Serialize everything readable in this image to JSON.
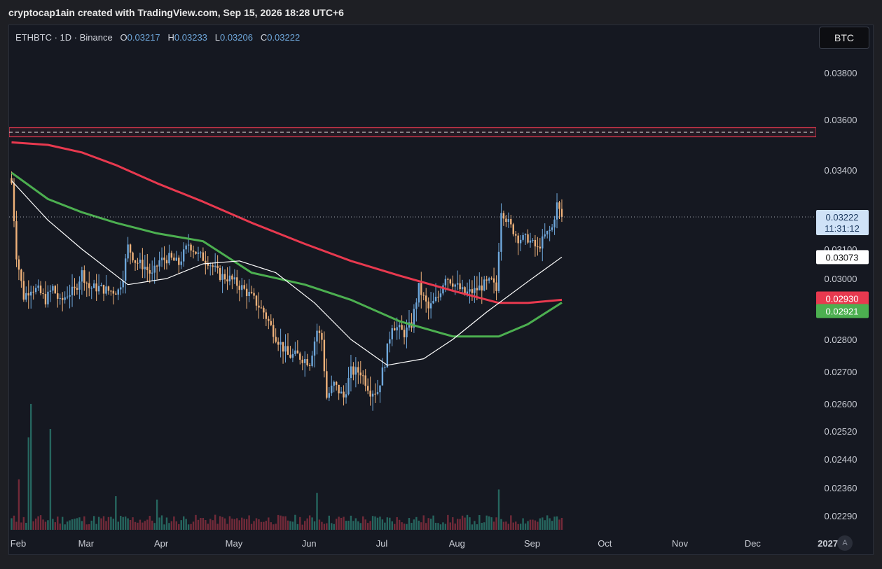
{
  "header": {
    "text": "cryptocap1ain created with TradingView.com, Sep 15, 2026 18:28 UTC+6"
  },
  "legend": {
    "symbol": "ETHBTC · 1D · Binance",
    "o_label": "O",
    "o_value": "0.03217",
    "h_label": "H",
    "h_value": "0.03233",
    "l_label": "L",
    "l_value": "0.03206",
    "c_label": "C",
    "c_value": "0.03222"
  },
  "currency_button": "BTC",
  "auto_button": "A",
  "colors": {
    "background": "#151821",
    "up_candle": "#6fa8dc",
    "down_candle": "#f0b27a",
    "ma_red": "#e8394f",
    "ma_green": "#4caf50",
    "ma_white": "#ffffff",
    "resistance_zone": "#e8394f"
  },
  "chart_data": {
    "type": "candlestick",
    "symbol": "ETHBTC",
    "interval": "1D",
    "exchange": "Binance",
    "ylim": [
      0.0226,
      0.0392
    ],
    "y_ticks": [
      "0.03800",
      "0.03600",
      "0.03400",
      "0.03100",
      "0.03000",
      "0.02800",
      "0.02700",
      "0.02600",
      "0.02520",
      "0.02440",
      "0.02360",
      "0.02290"
    ],
    "x_ticks": [
      "Feb",
      "Mar",
      "Apr",
      "May",
      "Jun",
      "Jul",
      "Aug",
      "Sep",
      "Oct",
      "Nov",
      "Dec",
      "2027"
    ],
    "price_labels": [
      {
        "value": "0.03222",
        "sub": "11:31:12",
        "role": "last-price"
      },
      {
        "value": "0.03073",
        "role": "ma-white"
      },
      {
        "value": "0.02930",
        "role": "ma-red"
      },
      {
        "value": "0.02921",
        "role": "ma-green"
      }
    ],
    "resistance_zone": [
      0.03532,
      0.03568
    ],
    "resistance_mid": 0.0355,
    "last_price": 0.03222,
    "price_path": [
      [
        "2026-01-31",
        0.0335
      ],
      [
        "2026-02-02",
        0.0308
      ],
      [
        "2026-02-05",
        0.0294
      ],
      [
        "2026-02-08",
        0.0297
      ],
      [
        "2026-02-11",
        0.0296
      ],
      [
        "2026-02-14",
        0.0293
      ],
      [
        "2026-02-17",
        0.0297
      ],
      [
        "2026-02-20",
        0.0292
      ],
      [
        "2026-02-23",
        0.0295
      ],
      [
        "2026-02-26",
        0.0296
      ],
      [
        "2026-03-01",
        0.0302
      ],
      [
        "2026-03-04",
        0.0297
      ],
      [
        "2026-03-08",
        0.0297
      ],
      [
        "2026-03-12",
        0.0296
      ],
      [
        "2026-03-16",
        0.0296
      ],
      [
        "2026-03-18",
        0.0301
      ],
      [
        "2026-03-20",
        0.0311
      ],
      [
        "2026-03-23",
        0.0306
      ],
      [
        "2026-03-27",
        0.0304
      ],
      [
        "2026-03-30",
        0.0301
      ],
      [
        "2026-04-02",
        0.0306
      ],
      [
        "2026-04-06",
        0.0307
      ],
      [
        "2026-04-10",
        0.0305
      ],
      [
        "2026-04-14",
        0.0312
      ],
      [
        "2026-04-18",
        0.0308
      ],
      [
        "2026-04-22",
        0.0306
      ],
      [
        "2026-04-27",
        0.0301
      ],
      [
        "2026-05-01",
        0.03
      ],
      [
        "2026-05-06",
        0.0297
      ],
      [
        "2026-05-10",
        0.0294
      ],
      [
        "2026-05-15",
        0.0289
      ],
      [
        "2026-05-20",
        0.0281
      ],
      [
        "2026-05-25",
        0.0275
      ],
      [
        "2026-05-29",
        0.0275
      ],
      [
        "2026-06-03",
        0.0273
      ],
      [
        "2026-06-06",
        0.0283
      ],
      [
        "2026-06-08",
        0.028
      ],
      [
        "2026-06-10",
        0.0262
      ],
      [
        "2026-06-13",
        0.0266
      ],
      [
        "2026-06-17",
        0.0262
      ],
      [
        "2026-06-20",
        0.027
      ],
      [
        "2026-06-24",
        0.027
      ],
      [
        "2026-06-28",
        0.0264
      ],
      [
        "2026-07-01",
        0.0264
      ],
      [
        "2026-07-04",
        0.0273
      ],
      [
        "2026-07-07",
        0.0285
      ],
      [
        "2026-07-12",
        0.0282
      ],
      [
        "2026-07-15",
        0.0285
      ],
      [
        "2026-07-18",
        0.0297
      ],
      [
        "2026-07-22",
        0.029
      ],
      [
        "2026-07-26",
        0.0294
      ],
      [
        "2026-07-29",
        0.0301
      ],
      [
        "2026-08-02",
        0.0298
      ],
      [
        "2026-08-06",
        0.0295
      ],
      [
        "2026-08-10",
        0.0296
      ],
      [
        "2026-08-14",
        0.0298
      ],
      [
        "2026-08-17",
        0.0299
      ],
      [
        "2026-08-19",
        0.0296
      ],
      [
        "2026-08-21",
        0.0325
      ],
      [
        "2026-08-24",
        0.032
      ],
      [
        "2026-08-28",
        0.0314
      ],
      [
        "2026-09-01",
        0.0314
      ],
      [
        "2026-09-05",
        0.031
      ],
      [
        "2026-09-08",
        0.0315
      ],
      [
        "2026-09-11",
        0.0318
      ],
      [
        "2026-09-13",
        0.0327
      ],
      [
        "2026-09-15",
        0.03222
      ]
    ],
    "ma_red": [
      [
        "2026-01-31",
        0.0351
      ],
      [
        "2026-02-15",
        0.035
      ],
      [
        "2026-03-01",
        0.0347
      ],
      [
        "2026-03-15",
        0.0342
      ],
      [
        "2026-04-01",
        0.0335
      ],
      [
        "2026-04-20",
        0.0328
      ],
      [
        "2026-05-10",
        0.032
      ],
      [
        "2026-06-01",
        0.0312
      ],
      [
        "2026-06-20",
        0.0306
      ],
      [
        "2026-07-10",
        0.0301
      ],
      [
        "2026-08-01",
        0.0296
      ],
      [
        "2026-08-20",
        0.0292
      ],
      [
        "2026-09-01",
        0.0292
      ],
      [
        "2026-09-15",
        0.0293
      ]
    ],
    "ma_green": [
      [
        "2026-01-31",
        0.0339
      ],
      [
        "2026-02-15",
        0.0329
      ],
      [
        "2026-03-01",
        0.0324
      ],
      [
        "2026-03-15",
        0.032
      ],
      [
        "2026-04-01",
        0.0316
      ],
      [
        "2026-04-20",
        0.0313
      ],
      [
        "2026-05-10",
        0.0302
      ],
      [
        "2026-06-01",
        0.0298
      ],
      [
        "2026-06-20",
        0.0293
      ],
      [
        "2026-07-10",
        0.0286
      ],
      [
        "2026-08-01",
        0.0281
      ],
      [
        "2026-08-20",
        0.0281
      ],
      [
        "2026-09-01",
        0.0285
      ],
      [
        "2026-09-15",
        0.02921
      ]
    ],
    "ma_white": [
      [
        "2026-01-31",
        0.0336
      ],
      [
        "2026-02-15",
        0.0321
      ],
      [
        "2026-03-01",
        0.031
      ],
      [
        "2026-03-20",
        0.0298
      ],
      [
        "2026-04-05",
        0.03
      ],
      [
        "2026-04-20",
        0.0305
      ],
      [
        "2026-05-05",
        0.0306
      ],
      [
        "2026-05-20",
        0.0302
      ],
      [
        "2026-06-05",
        0.0292
      ],
      [
        "2026-06-20",
        0.028
      ],
      [
        "2026-07-05",
        0.0272
      ],
      [
        "2026-07-20",
        0.0274
      ],
      [
        "2026-08-01",
        0.028
      ],
      [
        "2026-08-15",
        0.0289
      ],
      [
        "2026-09-01",
        0.0299
      ],
      [
        "2026-09-15",
        0.03073
      ]
    ],
    "volume_spikes": [
      [
        "2026-02-03",
        0.3
      ],
      [
        "2026-02-07",
        0.55
      ],
      [
        "2026-02-08",
        0.75
      ],
      [
        "2026-02-16",
        0.6
      ],
      [
        "2026-03-15",
        0.2
      ],
      [
        "2026-04-01",
        0.18
      ],
      [
        "2026-06-06",
        0.22
      ],
      [
        "2026-08-20",
        0.24
      ],
      [
        "2026-09-13",
        0.08
      ]
    ]
  }
}
